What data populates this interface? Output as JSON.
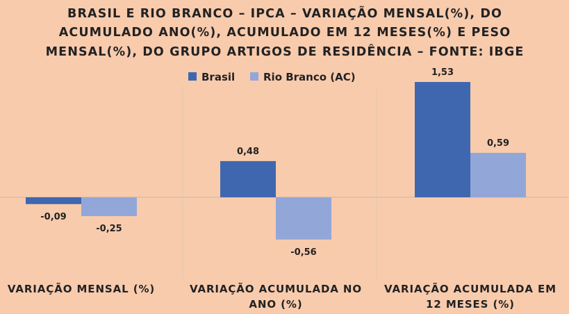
{
  "chart_data": {
    "type": "bar",
    "title_lines": [
      "BRASIL E RIO BRANCO – IPCA – VARIAÇÃO MENSAL(%), DO",
      "ACUMULADO ANO(%), ACUMULADO EM 12 MESES(%) E PESO",
      "MENSAL(%), DO GRUPO ARTIGOS DE RESIDÊNCIA – FONTE: IBGE"
    ],
    "categories": [
      [
        "VARIAÇÃO MENSAL (%)"
      ],
      [
        "VARIAÇÃO ACUMULADA NO",
        "ANO (%)"
      ],
      [
        "VARIAÇÃO ACUMULADA EM",
        "12 MESES (%)"
      ]
    ],
    "series": [
      {
        "name": "Brasil",
        "color": "#3F67B0",
        "values": [
          -0.09,
          0.48,
          1.53
        ],
        "labels": [
          "-0,09",
          "0,48",
          "1,53"
        ]
      },
      {
        "name": "Rio Branco (AC)",
        "color": "#92A7D8",
        "values": [
          -0.25,
          -0.56,
          0.59
        ],
        "labels": [
          "-0,25",
          "-0,56",
          "0,59"
        ]
      }
    ],
    "ylim": [
      -0.8,
      1.8
    ],
    "grid": false,
    "legend": "top-center",
    "colors": {
      "background": "#F8CBAD",
      "axis": "#C7B7A8",
      "separator": "#E3C7AD",
      "text": "#222222"
    }
  }
}
